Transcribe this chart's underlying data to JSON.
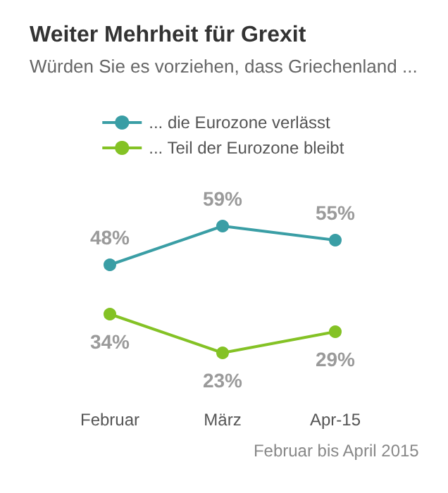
{
  "chart_data": {
    "type": "line",
    "title": "Weiter Mehrheit für Grexit",
    "subtitle": "Würden Sie es vorziehen, dass Griechenland ...",
    "categories": [
      "Februar",
      "März",
      "Apr-15"
    ],
    "series": [
      {
        "name": "... die Eurozone verlässt",
        "color": "#3a9ea5",
        "values": [
          48,
          59,
          55
        ],
        "value_labels": [
          "48%",
          "59%",
          "55%"
        ]
      },
      {
        "name": "... Teil der Eurozone bleibt",
        "color": "#84c225",
        "values": [
          34,
          23,
          29
        ],
        "value_labels": [
          "34%",
          "23%",
          "29%"
        ]
      }
    ],
    "annotations": [
      "Februar bis April 2015"
    ],
    "legend": "top",
    "marker": "circle",
    "line_style": "solid",
    "grid": false,
    "tick_labels": "x"
  }
}
